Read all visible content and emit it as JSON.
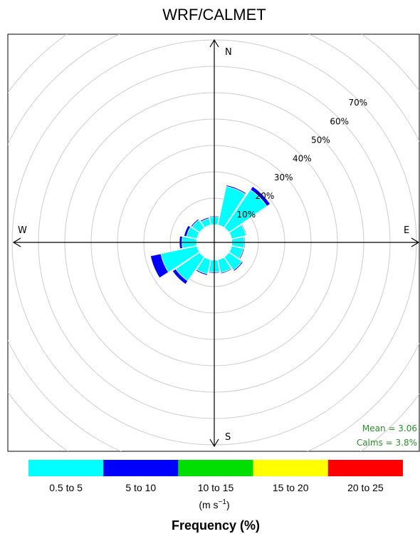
{
  "chart_data": {
    "type": "wind-rose",
    "title": "WRF/CALMET",
    "radial_labels": [
      "10%",
      "20%",
      "30%",
      "40%",
      "50%",
      "60%",
      "70%"
    ],
    "rmax_percent": 80,
    "compass": {
      "n": "N",
      "e": "E",
      "s": "S",
      "w": "W"
    },
    "bins": [
      {
        "label": "0.5 to 5",
        "color": "#00ffff"
      },
      {
        "label": "5 to 10",
        "color": "#0000ff"
      },
      {
        "label": "10 to 15",
        "color": "#00dd00"
      },
      {
        "label": "15 to 20",
        "color": "#ffff00"
      },
      {
        "label": "20 to 25",
        "color": "#ff0000"
      }
    ],
    "sectors": [
      {
        "direction": 0,
        "values": [
          3.0,
          0.3
        ]
      },
      {
        "direction": 22.5,
        "values": [
          15.0,
          0.5
        ]
      },
      {
        "direction": 45,
        "values": [
          17.5,
          1.5
        ]
      },
      {
        "direction": 67.5,
        "values": [
          5.5,
          0.3
        ]
      },
      {
        "direction": 90,
        "values": [
          4.7,
          0.3
        ]
      },
      {
        "direction": 112.5,
        "values": [
          4.5,
          0.4
        ]
      },
      {
        "direction": 135,
        "values": [
          6.0,
          0.5
        ]
      },
      {
        "direction": 157.5,
        "values": [
          5.0,
          0.4
        ]
      },
      {
        "direction": 180,
        "values": [
          4.5,
          0.4
        ]
      },
      {
        "direction": 202.5,
        "values": [
          5.5,
          0.5
        ]
      },
      {
        "direction": 225,
        "values": [
          11.0,
          1.5
        ]
      },
      {
        "direction": 247.5,
        "values": [
          14.0,
          4.0
        ]
      },
      {
        "direction": 270,
        "values": [
          5.5,
          1.0
        ]
      },
      {
        "direction": 292.5,
        "values": [
          4.0,
          1.0
        ]
      },
      {
        "direction": 315,
        "values": [
          3.5,
          0.5
        ]
      },
      {
        "direction": 337.5,
        "values": [
          2.5,
          0.5
        ]
      }
    ],
    "stats": {
      "mean": "Mean = 3.06",
      "calms": "Calms = 3.8%"
    },
    "units_prefix": "(m s",
    "units_sup": "−1",
    "units_suffix": ")",
    "legend_title": "Frequency (%)"
  }
}
